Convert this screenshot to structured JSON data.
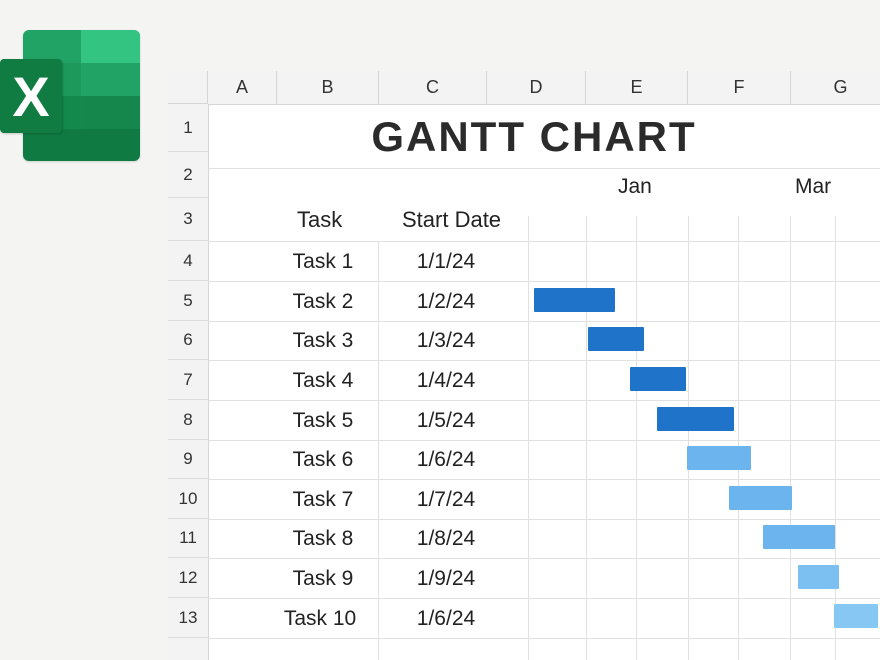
{
  "sheet": {
    "columns": [
      "A",
      "B",
      "C",
      "D",
      "E",
      "F",
      "G"
    ],
    "rows": [
      "1",
      "2",
      "3",
      "4",
      "5",
      "6",
      "7",
      "8",
      "9",
      "10",
      "11",
      "12",
      "13"
    ],
    "title": "GANTT CHART",
    "months": [
      "Jan",
      "Mar"
    ],
    "headers": {
      "task": "Task",
      "start": "Start Date"
    },
    "tasks": [
      {
        "name": "Task 1",
        "start": "1/1/24"
      },
      {
        "name": "Task 2",
        "start": "1/2/24"
      },
      {
        "name": "Task 3",
        "start": "1/3/24"
      },
      {
        "name": "Task 4",
        "start": "1/4/24"
      },
      {
        "name": "Task 5",
        "start": "1/5/24"
      },
      {
        "name": "Task 6",
        "start": "1/6/24"
      },
      {
        "name": "Task 7",
        "start": "1/7/24"
      },
      {
        "name": "Task 8",
        "start": "1/8/24"
      },
      {
        "name": "Task 9",
        "start": "1/9/24"
      },
      {
        "name": "Task 10",
        "start": "1/6/24"
      }
    ]
  },
  "colors": {
    "bar_dark": "#1f74c9",
    "bar_light": "#6cb4ee",
    "excel_green": "#107c41"
  },
  "logo_icon": "excel-logo-icon"
}
